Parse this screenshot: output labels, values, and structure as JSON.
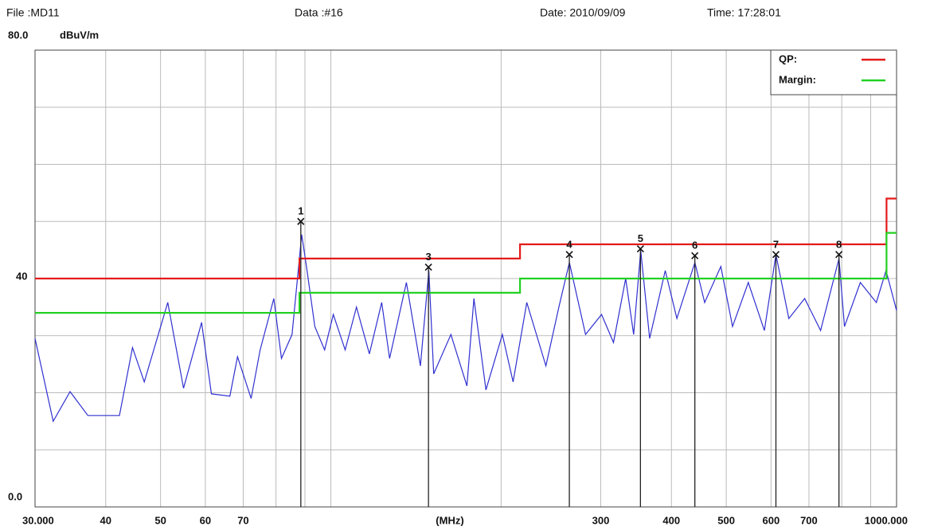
{
  "header": {
    "file": "File :MD11",
    "data": "Data :#16",
    "date": "Date: 2010/09/09",
    "time": "Time: 17:28:01"
  },
  "chart_data": {
    "type": "line",
    "y_label": "dBuV/m",
    "x_label": "(MHz)",
    "xlog": true,
    "xlim": [
      30,
      1000
    ],
    "ylim": [
      0,
      80
    ],
    "xticks": [
      {
        "value": 30,
        "label": "30.000"
      },
      40,
      50,
      60,
      70,
      300,
      400,
      500,
      600,
      700,
      {
        "value": 1000,
        "label": "1000.000"
      }
    ],
    "xgrid": [
      80,
      90,
      100,
      200,
      800,
      900
    ],
    "yticks": [
      {
        "value": 0,
        "label": "0.0"
      },
      40,
      {
        "value": 80,
        "label": "80.0"
      }
    ],
    "ygrid": [
      10,
      20,
      30,
      50,
      60,
      70
    ],
    "grid": true,
    "legend": "top-right",
    "series": [
      {
        "name": "QP:",
        "color": "#e41a1a",
        "x": [
          30,
          88,
          88,
          216,
          216,
          960,
          960,
          1000
        ],
        "values": [
          40,
          40,
          43.5,
          43.5,
          46,
          46,
          54,
          54
        ]
      },
      {
        "name": "Margin:",
        "color": "#22d022",
        "x": [
          30,
          88,
          88,
          216,
          216,
          960,
          960,
          1000
        ],
        "values": [
          34,
          34,
          37.5,
          37.5,
          40,
          40,
          48,
          48
        ]
      }
    ],
    "trace": {
      "color": "#3030d0",
      "x": [
        30,
        32.3,
        34.6,
        37.2,
        42.3,
        44.6,
        46.8,
        51.5,
        54.9,
        59.1,
        61.5,
        66.3,
        68.4,
        72.3,
        75.0,
        79.3,
        81.8,
        85.4,
        88.8,
        90.6,
        93.7,
        97.5,
        101,
        106,
        111,
        117,
        123,
        127,
        136,
        144,
        149,
        152,
        163,
        174,
        179,
        188,
        201,
        210,
        222,
        240,
        253,
        264,
        282,
        301,
        316,
        332,
        343,
        353,
        366,
        390,
        409,
        440,
        458,
        489,
        513,
        547,
        584,
        612,
        645,
        688,
        734,
        791,
        809,
        863,
        921,
        958,
        1000
      ],
      "values": [
        29.5,
        15,
        20.2,
        16,
        16,
        27.9,
        21.9,
        35.8,
        20.8,
        32.3,
        19.8,
        19.4,
        26.3,
        19,
        27.5,
        36.5,
        26,
        30.2,
        47.7,
        42,
        31.6,
        27.5,
        33.7,
        27.5,
        35,
        26.8,
        35.8,
        26,
        39.3,
        24.7,
        41.4,
        23.3,
        30.2,
        21.2,
        36.5,
        20.5,
        30.2,
        21.9,
        35.8,
        24.7,
        35,
        42.8,
        30.2,
        33.7,
        28.8,
        40,
        30.2,
        44.9,
        29.5,
        41.4,
        33,
        42.8,
        35.8,
        42.1,
        31.6,
        39.3,
        30.9,
        44.2,
        33,
        36.5,
        30.9,
        43.5,
        31.6,
        39.3,
        35.8,
        41.4,
        34.4
      ]
    },
    "markers": [
      {
        "label": "1",
        "x": 88.5,
        "value": 50
      },
      {
        "label": "3",
        "x": 148.8,
        "value": 42
      },
      {
        "label": "4",
        "x": 264,
        "value": 44.2
      },
      {
        "label": "5",
        "x": 352.6,
        "value": 45.2
      },
      {
        "label": "6",
        "x": 440,
        "value": 44
      },
      {
        "label": "7",
        "x": 612,
        "value": 44.2
      },
      {
        "label": "8",
        "x": 791,
        "value": 44.2
      }
    ]
  }
}
